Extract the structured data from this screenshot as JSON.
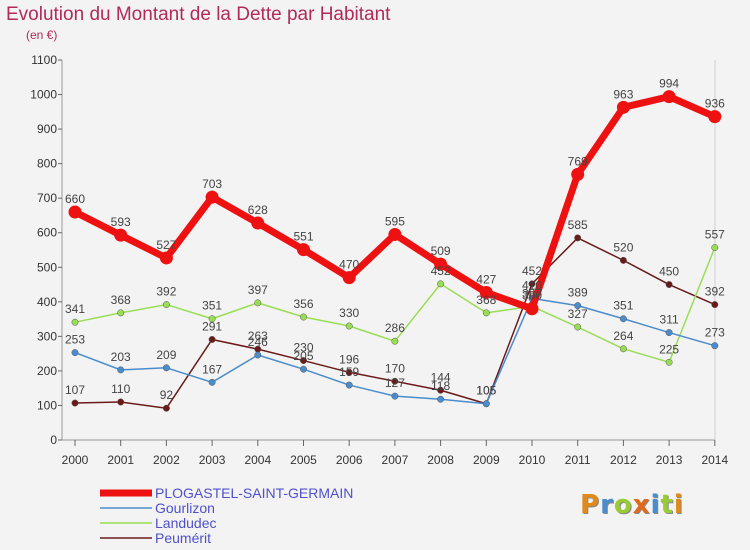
{
  "chart_data": {
    "type": "line",
    "title": "Evolution du Montant de la Dette par Habitant",
    "subtitle": "(en €)",
    "categories": [
      "2000",
      "2001",
      "2002",
      "2003",
      "2004",
      "2005",
      "2006",
      "2007",
      "2008",
      "2009",
      "2010",
      "2011",
      "2012",
      "2013",
      "2014"
    ],
    "ylim": [
      0,
      1100
    ],
    "yticks": [
      0,
      100,
      200,
      300,
      400,
      500,
      600,
      700,
      800,
      900,
      1000,
      1100
    ],
    "grid": false,
    "legend_position": "bottom-left",
    "series": [
      {
        "name": "PLOGASTEL-SAINT-GERMAIN",
        "color": "#ee1111",
        "values": [
          660,
          593,
          527,
          703,
          628,
          551,
          470,
          595,
          509,
          427,
          380,
          769,
          963,
          994,
          936
        ]
      },
      {
        "name": "Gourlizon",
        "color": "#4a8ccc",
        "values": [
          253,
          203,
          209,
          167,
          246,
          205,
          159,
          127,
          118,
          105,
          410,
          389,
          351,
          311,
          273
        ]
      },
      {
        "name": "Landudec",
        "color": "#99dd55",
        "values": [
          341,
          368,
          392,
          351,
          397,
          356,
          330,
          286,
          452,
          368,
          387,
          327,
          264,
          225,
          557
        ]
      },
      {
        "name": "Peumérit",
        "color": "#6b1a1a",
        "values": [
          107,
          110,
          92,
          291,
          263,
          230,
          196,
          170,
          144,
          105,
          452,
          585,
          520,
          450,
          392
        ]
      }
    ]
  },
  "logo": {
    "text": "Proxiti",
    "colors": [
      "#e08a1a",
      "#4a8ccc",
      "#99cc33",
      "#e06a1a",
      "#4a8ccc",
      "#99cc33",
      "#e08a1a"
    ]
  }
}
